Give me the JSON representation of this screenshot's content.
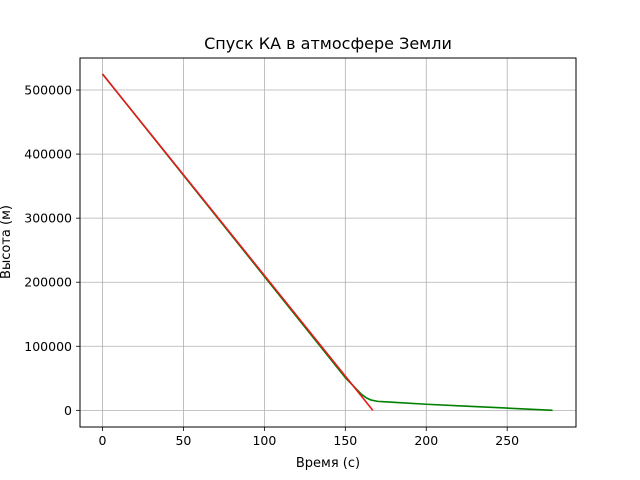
{
  "chart_data": {
    "type": "line",
    "title": "Спуск КА в атмосфере Земли",
    "xlabel": "Время (с)",
    "ylabel": "Высота (м)",
    "xlim": [
      -13.9,
      292.5
    ],
    "ylim": [
      -26000,
      550000
    ],
    "grid": true,
    "x_ticks": [
      0,
      50,
      100,
      150,
      200,
      250
    ],
    "y_ticks": [
      0,
      100000,
      200000,
      300000,
      400000,
      500000
    ],
    "colors": {
      "green": "#008000",
      "red": "#e41a1c"
    },
    "series": [
      {
        "color": "green",
        "x": [
          0,
          50,
          100,
          150,
          160,
          163,
          166,
          170,
          180,
          200,
          220,
          250,
          278
        ],
        "y": [
          525000,
          367000,
          209000,
          51000,
          25000,
          19500,
          16000,
          14000,
          12500,
          9500,
          7000,
          3500,
          0
        ]
      },
      {
        "color": "red",
        "x": [
          0,
          167
        ],
        "y": [
          525000,
          0
        ]
      }
    ]
  }
}
